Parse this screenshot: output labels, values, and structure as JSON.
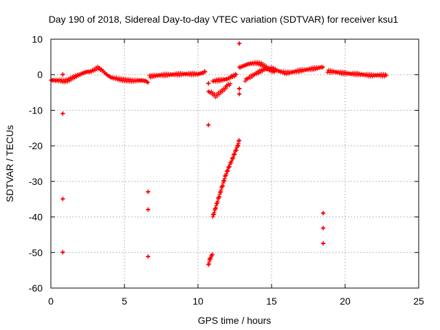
{
  "chart_data": {
    "type": "scatter",
    "title": "Day 190 of 2018, Sidereal Day-to-day VTEC variation (SDTVAR) for receiver ksu1",
    "xlabel": "GPS time / hours",
    "ylabel": "SDTVAR / TECUs",
    "xlim": [
      0,
      25
    ],
    "ylim": [
      -60,
      10
    ],
    "xticks": [
      0,
      5,
      10,
      15,
      20,
      25
    ],
    "yticks": [
      -60,
      -50,
      -40,
      -30,
      -20,
      -10,
      0,
      10
    ],
    "grid": true,
    "marker": "+",
    "color": "#ff0000",
    "series": [
      {
        "name": "SDTVAR",
        "segments": [
          {
            "x": [
              0.0,
              0.3,
              0.6,
              0.9,
              1.2,
              1.5,
              1.8,
              2.1,
              2.4,
              2.7,
              3.0,
              3.2,
              3.5,
              3.8,
              4.1,
              4.4,
              4.7,
              5.0,
              5.3,
              5.6,
              5.9,
              6.2,
              6.5,
              6.6
            ],
            "y": [
              -1.5,
              -1.6,
              -1.6,
              -1.8,
              -1.5,
              -0.8,
              -0.2,
              0.3,
              0.8,
              0.9,
              1.5,
              2.0,
              1.2,
              0.0,
              -0.8,
              -1.0,
              -1.3,
              -1.5,
              -1.6,
              -1.7,
              -1.6,
              -1.6,
              -1.8,
              -2.2
            ]
          },
          {
            "x": [
              6.7,
              7.0,
              7.5,
              8.0,
              8.5,
              9.0,
              9.5,
              10.0,
              10.3,
              10.5
            ],
            "y": [
              -0.5,
              -0.3,
              -0.1,
              0.0,
              0.1,
              0.2,
              0.2,
              0.2,
              0.5,
              0.8
            ]
          },
          {
            "x": [
              11.0,
              11.5,
              12.0,
              12.3,
              12.6
            ],
            "y": [
              -1.8,
              -1.5,
              -1.2,
              -0.5,
              0.0
            ]
          },
          {
            "x": [
              10.7,
              10.9,
              11.2,
              11.5,
              11.8,
              12.0,
              12.2
            ],
            "y": [
              -4.8,
              -5.0,
              -6.0,
              -5.0,
              -4.0,
              -3.0,
              -2.5
            ]
          },
          {
            "x": [
              12.8,
              13.1,
              13.4,
              13.7,
              14.0,
              14.3,
              14.6,
              14.9,
              15.2
            ],
            "y": [
              2.0,
              2.5,
              3.0,
              3.2,
              3.3,
              3.0,
              2.2,
              1.3,
              0.8
            ]
          },
          {
            "x": [
              13.2,
              13.6,
              14.0,
              14.5,
              15.0,
              15.5,
              16.0,
              16.5,
              17.0,
              17.5,
              18.0,
              18.5
            ],
            "y": [
              -1.5,
              -0.5,
              0.5,
              1.5,
              1.8,
              1.0,
              0.5,
              0.8,
              1.2,
              1.5,
              1.8,
              2.2
            ]
          },
          {
            "x": [
              18.8,
              19.3,
              19.8,
              20.3,
              20.8,
              21.3,
              21.8,
              22.3,
              22.8
            ],
            "y": [
              1.0,
              0.8,
              0.5,
              0.3,
              0.2,
              0.0,
              -0.2,
              -0.1,
              -0.2
            ]
          },
          {
            "x": [
              10.7,
              10.8,
              10.9,
              11.0
            ],
            "y": [
              -53.5,
              -52.0,
              -51.0,
              -50.5
            ]
          },
          {
            "x": [
              11.0,
              11.3,
              11.6,
              11.9,
              12.2,
              12.5,
              12.7,
              12.8
            ],
            "y": [
              -40.0,
              -36.0,
              -32.0,
              -28.0,
              -25.0,
              -22.0,
              -20.0,
              -18.5
            ]
          }
        ],
        "isolated_points": [
          {
            "x": 0.8,
            "y": 0.0
          },
          {
            "x": 0.8,
            "y": -11.0
          },
          {
            "x": 0.8,
            "y": -35.0
          },
          {
            "x": 0.8,
            "y": -50.0
          },
          {
            "x": 6.6,
            "y": -33.0
          },
          {
            "x": 6.6,
            "y": -38.0
          },
          {
            "x": 6.6,
            "y": -51.2
          },
          {
            "x": 10.7,
            "y": -2.5
          },
          {
            "x": 10.7,
            "y": -14.2
          },
          {
            "x": 12.8,
            "y": 8.7
          },
          {
            "x": 12.8,
            "y": -4.0
          },
          {
            "x": 12.8,
            "y": -5.5
          },
          {
            "x": 18.5,
            "y": -39.0
          },
          {
            "x": 18.5,
            "y": -43.2
          },
          {
            "x": 18.5,
            "y": -47.5
          }
        ]
      }
    ]
  }
}
